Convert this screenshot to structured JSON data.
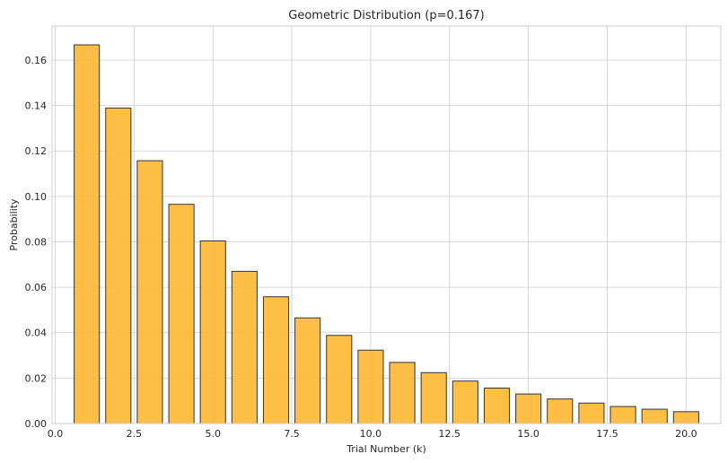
{
  "chart_data": {
    "type": "bar",
    "title": "Geometric Distribution (p=0.167)",
    "xlabel": "Trial Number (k)",
    "ylabel": "Probability",
    "x": [
      1,
      2,
      3,
      4,
      5,
      6,
      7,
      8,
      9,
      10,
      11,
      12,
      13,
      14,
      15,
      16,
      17,
      18,
      19,
      20
    ],
    "values": [
      0.1667,
      0.1389,
      0.1157,
      0.0965,
      0.0804,
      0.067,
      0.0558,
      0.0465,
      0.0388,
      0.0323,
      0.0269,
      0.0224,
      0.0187,
      0.0156,
      0.013,
      0.0108,
      0.009,
      0.0075,
      0.0063,
      0.0052
    ],
    "xlim": [
      -0.1,
      21.1
    ],
    "ylim": [
      0,
      0.175
    ],
    "xticks": [
      0.0,
      2.5,
      5.0,
      7.5,
      10.0,
      12.5,
      15.0,
      17.5,
      20.0
    ],
    "xtick_labels": [
      "0.0",
      "2.5",
      "5.0",
      "7.5",
      "10.0",
      "12.5",
      "15.0",
      "17.5",
      "20.0"
    ],
    "yticks": [
      0.0,
      0.02,
      0.04,
      0.06,
      0.08,
      0.1,
      0.12,
      0.14,
      0.16
    ],
    "ytick_labels": [
      "0.00",
      "0.02",
      "0.04",
      "0.06",
      "0.08",
      "0.10",
      "0.12",
      "0.14",
      "0.16"
    ],
    "grid": true,
    "bar_color": "#FFB732",
    "bar_edge_color": "#333333",
    "grid_color": "#cccccc",
    "spine_color": "#cccccc"
  }
}
